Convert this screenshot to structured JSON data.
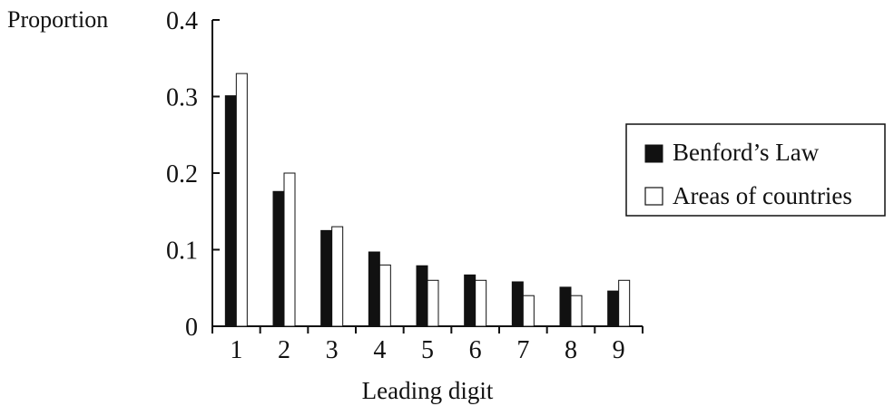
{
  "chart_data": {
    "type": "bar",
    "ylabel": "Proportion",
    "xlabel": "Leading digit",
    "categories": [
      "1",
      "2",
      "3",
      "4",
      "5",
      "6",
      "7",
      "8",
      "9"
    ],
    "series": [
      {
        "name": "Benford’s Law",
        "values": [
          0.301,
          0.176,
          0.125,
          0.097,
          0.079,
          0.067,
          0.058,
          0.051,
          0.046
        ],
        "color": "#111111"
      },
      {
        "name": "Areas of countries",
        "values": [
          0.33,
          0.2,
          0.13,
          0.08,
          0.06,
          0.06,
          0.04,
          0.04,
          0.06
        ],
        "color": "#ffffff"
      }
    ],
    "ylim": [
      0,
      0.4
    ],
    "yticks": [
      "0",
      "0.1",
      "0.2",
      "0.3",
      "0.4"
    ],
    "legend_position": "right",
    "grid": false
  }
}
